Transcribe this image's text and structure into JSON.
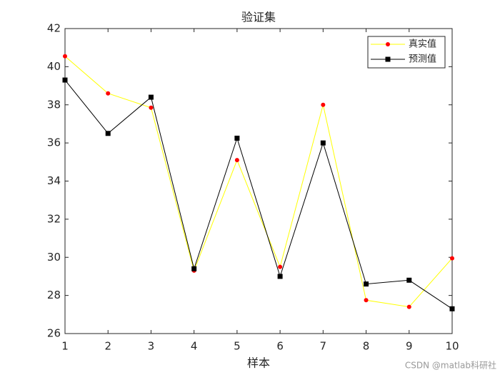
{
  "chart_data": {
    "type": "line",
    "title": "验证集",
    "xlabel": "样本",
    "x": [
      1,
      2,
      3,
      4,
      5,
      6,
      7,
      8,
      9,
      10
    ],
    "series": [
      {
        "name": "真实值",
        "color": "#ffff00",
        "marker": "circle",
        "marker_color": "#ff0000",
        "values": [
          40.55,
          38.6,
          37.85,
          29.3,
          35.1,
          29.5,
          38.0,
          27.75,
          27.4,
          29.95
        ]
      },
      {
        "name": "预测值",
        "color": "#000000",
        "marker": "square",
        "marker_color": "#000000",
        "values": [
          39.3,
          36.5,
          38.4,
          29.4,
          36.25,
          29.0,
          36.0,
          28.6,
          28.8,
          27.3
        ]
      }
    ],
    "xlim": [
      1,
      10
    ],
    "xticks": [
      1,
      2,
      3,
      4,
      5,
      6,
      7,
      8,
      9,
      10
    ],
    "ylim": [
      26,
      42
    ],
    "yticks": [
      26,
      28,
      30,
      32,
      34,
      36,
      38,
      40,
      42
    ],
    "grid": false,
    "legend": "northeast",
    "watermark": "CSDN @matlab科研社"
  }
}
